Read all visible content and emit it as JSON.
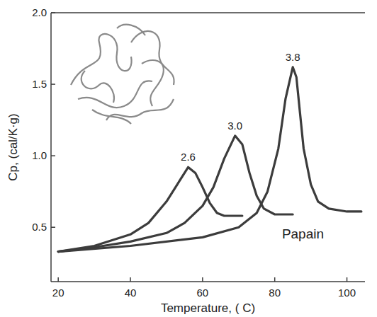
{
  "chart_data": {
    "type": "line",
    "x_label": "Temperature, ( C)",
    "y_label": "Cp, (cal/K·g)",
    "annotations": [
      "Papain"
    ],
    "color": "#3c3c3c",
    "xlim": [
      18,
      105
    ],
    "xticks": [
      20,
      40,
      60,
      80,
      100
    ],
    "ylim": [
      0.12,
      2.0
    ],
    "yticks": [
      0.5,
      {
        "value": 1,
        "label": "1.0"
      },
      1.5,
      {
        "value": 2,
        "label": "2.0"
      }
    ],
    "grid": false,
    "data_labels": false,
    "series": [
      {
        "name": "2.6",
        "color": "#3c3c3c",
        "x": [
          20,
          30,
          40,
          45,
          50,
          53,
          56,
          58,
          60,
          62,
          64,
          66,
          68,
          71
        ],
        "values": [
          0.33,
          0.37,
          0.45,
          0.53,
          0.68,
          0.8,
          0.92,
          0.88,
          0.78,
          0.67,
          0.6,
          0.58,
          0.58,
          0.58
        ]
      },
      {
        "name": "3.0",
        "color": "#3c3c3c",
        "x": [
          20,
          30,
          40,
          50,
          55,
          60,
          63,
          66,
          69,
          71,
          73,
          75,
          77,
          80,
          85
        ],
        "values": [
          0.33,
          0.36,
          0.4,
          0.46,
          0.53,
          0.65,
          0.78,
          0.98,
          1.14,
          1.08,
          0.88,
          0.72,
          0.63,
          0.59,
          0.59
        ]
      },
      {
        "name": "3.8",
        "color": "#3c3c3c",
        "x": [
          20,
          40,
          60,
          70,
          75,
          78,
          81,
          83,
          85,
          86,
          87,
          88,
          90,
          92,
          95,
          100,
          104
        ],
        "values": [
          0.33,
          0.37,
          0.43,
          0.5,
          0.6,
          0.75,
          1.05,
          1.4,
          1.62,
          1.55,
          1.3,
          1.05,
          0.8,
          0.68,
          0.63,
          0.61,
          0.61
        ]
      }
    ]
  }
}
